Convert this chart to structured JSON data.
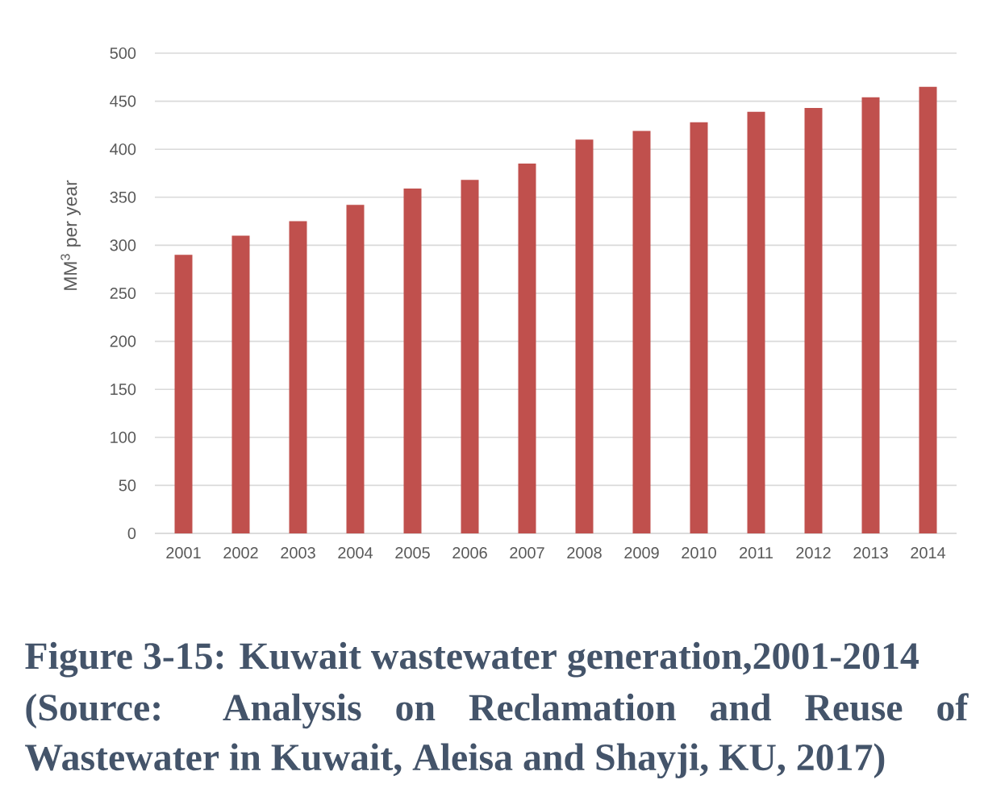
{
  "chart_data": {
    "type": "bar",
    "title": "Figure 3-15: Kuwait wastewater generation,2001-2014",
    "ylabel": "MM$^{3}$ per year",
    "annotations": [
      "(Source: Analysis on Reclamation and Reuse of Wastewater in Kuwait, Aleisa and Shayji, KU, 2017)"
    ],
    "categories": [
      "2001",
      "2002",
      "2003",
      "2004",
      "2005",
      "2006",
      "2007",
      "2008",
      "2009",
      "2010",
      "2011",
      "2012",
      "2013",
      "2014"
    ],
    "values": [
      290,
      310,
      325,
      342,
      359,
      368,
      385,
      410,
      419,
      428,
      439,
      443,
      454,
      465
    ],
    "color": "#c0504d",
    "ylim": [
      0,
      500
    ],
    "yticks": [
      0,
      50,
      100,
      150,
      200,
      250,
      300,
      350,
      400,
      450,
      500
    ],
    "grid": "y"
  }
}
